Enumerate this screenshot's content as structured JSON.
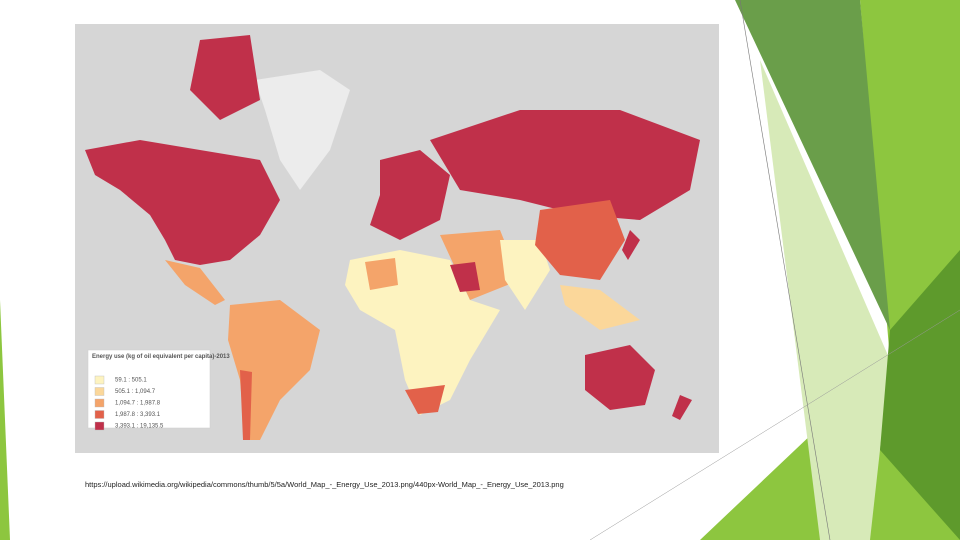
{
  "legend": {
    "title": "Energy use (kg of oil equivalent per capita)-2013",
    "items": [
      {
        "label": "59.1 : 505.1",
        "color": "#fdf3c0"
      },
      {
        "label": "505.1 : 1,094.7",
        "color": "#fbd79a"
      },
      {
        "label": "1,094.7 : 1,987.8",
        "color": "#f4a46a"
      },
      {
        "label": "1,987.8 : 3,393.1",
        "color": "#e2614a"
      },
      {
        "label": "3,393.1 : 19,135.5",
        "color": "#c0304a"
      }
    ]
  },
  "caption": "https://upload.wikimedia.org/wikipedia/commons/thumb/5/5a/World_Map_-_Energy_Use_2013.png/440px-World_Map_-_Energy_Use_2013.png"
}
